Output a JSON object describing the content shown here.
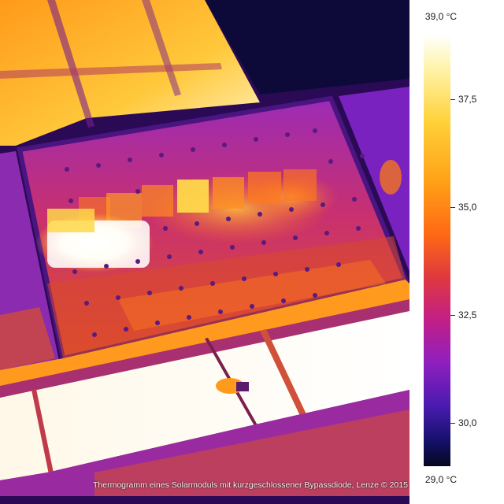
{
  "image": {
    "subject": "thermal-image-solar-module",
    "palette": {
      "hot": "#ffffff",
      "warm": "#ffb21f",
      "mid": "#e0393d",
      "cool": "#8f1fbe",
      "cold": "#050820"
    }
  },
  "legend": {
    "max_label": "39,0 °C",
    "min_label": "29,0 °C",
    "ticks": [
      {
        "label": "37,5",
        "value": 37.5
      },
      {
        "label": "35,0",
        "value": 35.0
      },
      {
        "label": "32,5",
        "value": 32.5
      },
      {
        "label": "30,0",
        "value": 30.0
      }
    ],
    "range": [
      29.0,
      39.0
    ]
  },
  "caption": "Thermogramm eines Solarmoduls mit kurzgeschlossener Bypassdiode, Lenze © 2015"
}
